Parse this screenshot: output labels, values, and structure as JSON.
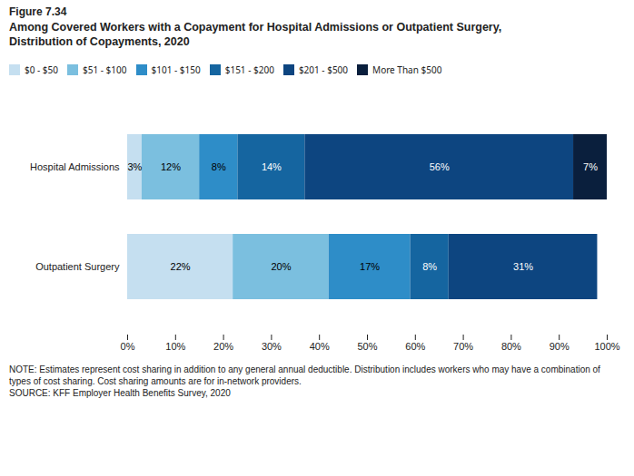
{
  "chart_data": {
    "type": "bar",
    "orientation": "horizontal",
    "stacked": true,
    "data_labels": true,
    "grid": false,
    "legend": "top",
    "title": "Figure 7.34",
    "subtitle": "Among Covered Workers with a Copayment for Hospital Admissions or Outpatient Surgery,\nDistribution of Copayments, 2020",
    "annotations": [
      "NOTE: Estimates represent cost sharing in addition to any general annual deductible. Distribution includes workers who may have a combination of\ntypes of cost sharing. Cost sharing amounts are for in-network providers.\nSOURCE: KFF Employer Health Benefits Survey, 2020"
    ],
    "categories": [
      "Hospital Admissions",
      "Outpatient Surgery"
    ],
    "series": [
      {
        "name": "$0 - $50",
        "color": "#c5dff0",
        "values": [
          3,
          22
        ],
        "value_labels": [
          "3%",
          "22%"
        ]
      },
      {
        "name": "$51 - $100",
        "color": "#7bbfdf",
        "values": [
          12,
          20
        ],
        "value_labels": [
          "12%",
          "20%"
        ]
      },
      {
        "name": "$101 - $150",
        "color": "#2e8dc8",
        "values": [
          8,
          17
        ],
        "value_labels": [
          "8%",
          "17%"
        ]
      },
      {
        "name": "$151 - $200",
        "color": "#1565a0",
        "values": [
          14,
          8
        ],
        "value_labels": [
          "14%",
          "8%"
        ]
      },
      {
        "name": "$201 - $500",
        "color": "#0d4580",
        "values": [
          56,
          31
        ],
        "value_labels": [
          "56%",
          "31%"
        ]
      },
      {
        "name": "More Than $500",
        "color": "#0a1f3d",
        "values": [
          7,
          0
        ],
        "value_labels": [
          "7%",
          null
        ]
      }
    ],
    "xlim": [
      0,
      100
    ],
    "xticks": [
      {
        "value": 0,
        "label": "0%"
      },
      {
        "value": 10,
        "label": "10%"
      },
      {
        "value": 20,
        "label": "20%"
      },
      {
        "value": 30,
        "label": "30%"
      },
      {
        "value": 40,
        "label": "40%"
      },
      {
        "value": 50,
        "label": "50%"
      },
      {
        "value": 60,
        "label": "60%"
      },
      {
        "value": 70,
        "label": "70%"
      },
      {
        "value": 80,
        "label": "80%"
      },
      {
        "value": 90,
        "label": "90%"
      },
      {
        "value": 100,
        "label": "100%"
      }
    ]
  }
}
